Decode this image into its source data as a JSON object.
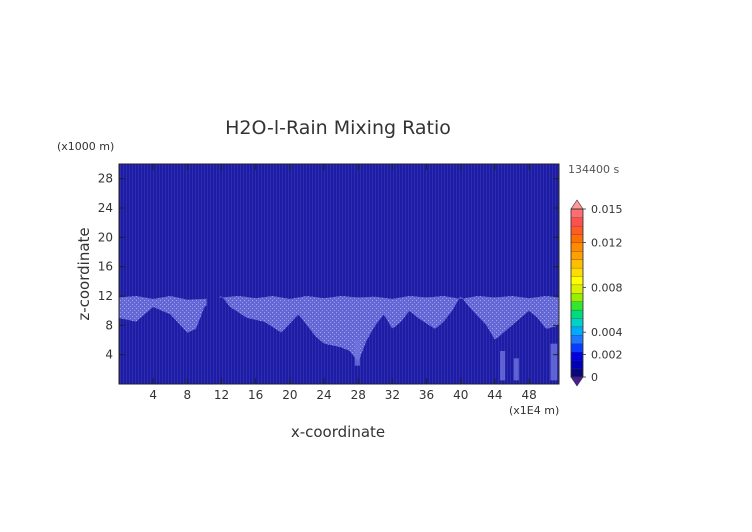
{
  "chart_data": {
    "type": "heatmap",
    "title": "H2O-l-Rain Mixing Ratio",
    "xlabel": "x-coordinate",
    "ylabel": "z-coordinate",
    "x_unit": "(x1E4 m)",
    "y_unit": "(x1000 m)",
    "time_label": "134400 s",
    "xlim": [
      0,
      51.5
    ],
    "ylim": [
      0,
      30
    ],
    "x_ticks": [
      4,
      8,
      12,
      16,
      20,
      24,
      28,
      32,
      36,
      40,
      44,
      48
    ],
    "y_ticks": [
      4,
      8,
      12,
      16,
      20,
      24,
      28
    ],
    "colorbar": {
      "range": [
        0,
        0.015
      ],
      "labeled_ticks": [
        0,
        0.002,
        0.004,
        0.008,
        0.012,
        0.015
      ],
      "level_colors": [
        "#08087c",
        "#0000b4",
        "#0000e0",
        "#0a3cff",
        "#1e78ff",
        "#00aaff",
        "#00d2c8",
        "#00dc78",
        "#32e632",
        "#96f000",
        "#dcf000",
        "#ffff00",
        "#ffdc00",
        "#ffbe00",
        "#ffa000",
        "#ff8c00",
        "#ff6e00",
        "#ff5a28",
        "#ff5050",
        "#ff6e6e"
      ],
      "under_color": "#4b1a96",
      "over_color": "#ff9a9a"
    },
    "field_background_color": "#1c1ca6",
    "trace_rain_color": "#6e74dd",
    "trace_rain_region": {
      "z_bottom_by_x": [
        [
          0,
          9
        ],
        [
          2,
          8.5
        ],
        [
          4,
          10.5
        ],
        [
          6,
          9.5
        ],
        [
          8,
          7
        ],
        [
          9,
          7.5
        ],
        [
          10,
          10.5
        ],
        [
          12,
          12
        ],
        [
          13,
          10.5
        ],
        [
          15,
          9
        ],
        [
          17,
          8.5
        ],
        [
          19,
          7
        ],
        [
          21,
          9.5
        ],
        [
          22,
          8
        ],
        [
          23,
          6.5
        ],
        [
          24,
          5.5
        ],
        [
          26,
          5
        ],
        [
          27,
          4.5
        ],
        [
          28,
          3
        ],
        [
          29,
          6
        ],
        [
          30,
          8
        ],
        [
          31,
          9.5
        ],
        [
          32,
          7.5
        ],
        [
          33,
          8.5
        ],
        [
          34,
          10
        ],
        [
          35,
          9
        ],
        [
          37,
          7.5
        ],
        [
          38,
          8.5
        ],
        [
          39,
          10
        ],
        [
          40,
          12
        ],
        [
          41,
          10.5
        ],
        [
          43,
          8
        ],
        [
          44,
          6
        ],
        [
          46,
          8
        ],
        [
          48,
          10
        ],
        [
          49,
          9
        ],
        [
          50,
          7.5
        ],
        [
          51.5,
          8
        ]
      ],
      "z_top_by_x": [
        [
          0,
          11.8
        ],
        [
          2,
          12
        ],
        [
          4,
          11.6
        ],
        [
          6,
          12
        ],
        [
          8,
          11.5
        ],
        [
          10,
          11.6
        ],
        [
          12,
          11.8
        ],
        [
          14,
          12
        ],
        [
          16,
          11.7
        ],
        [
          18,
          12
        ],
        [
          20,
          11.6
        ],
        [
          22,
          12
        ],
        [
          24,
          11.7
        ],
        [
          26,
          12
        ],
        [
          28,
          11.8
        ],
        [
          30,
          11.9
        ],
        [
          32,
          11.6
        ],
        [
          34,
          12
        ],
        [
          36,
          11.8
        ],
        [
          38,
          12
        ],
        [
          40,
          11.6
        ],
        [
          42,
          12
        ],
        [
          44,
          11.8
        ],
        [
          46,
          12
        ],
        [
          48,
          11.7
        ],
        [
          50,
          12
        ],
        [
          51.5,
          11.8
        ]
      ],
      "gaps_x": [
        [
          10.3,
          11.7
        ]
      ]
    },
    "trace_rain_columns": [
      [
        27.6,
        28.2,
        2.5,
        6
      ],
      [
        44.6,
        45.2,
        0.5,
        4.5
      ],
      [
        46.2,
        46.8,
        0.5,
        3.5
      ],
      [
        50.5,
        51.3,
        0.5,
        5.5
      ]
    ]
  }
}
